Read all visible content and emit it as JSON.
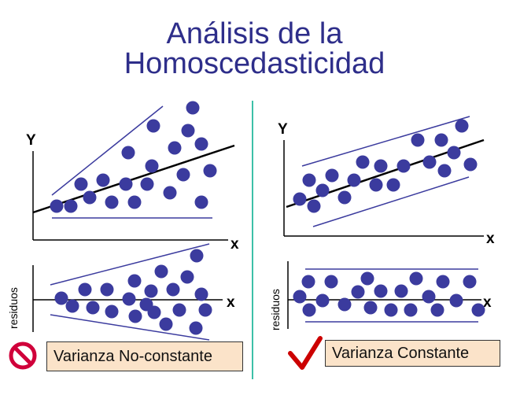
{
  "title": {
    "line1": "Análisis de la",
    "line2": "Homoscedasticidad"
  },
  "colors": {
    "title": "#2e2e8a",
    "dots": "#3b3b9e",
    "envelope": "#3b3b9e",
    "divider": "#3cc0a8",
    "box_fill": "#fbe3c9",
    "no_icon": "#d0003a",
    "check_icon": "#cc0000"
  },
  "left_panel": {
    "scatter": {
      "y_label": "Y",
      "x_label": "x"
    },
    "residuals": {
      "y_label": "residuos",
      "x_label": "x"
    },
    "caption": "Varianza No-constante",
    "icon": "prohibited-icon"
  },
  "right_panel": {
    "scatter": {
      "y_label": "Y",
      "x_label": "x"
    },
    "residuals": {
      "y_label": "residuos",
      "x_label": "x"
    },
    "caption": "Varianza Constante",
    "icon": "checkmark-icon"
  }
}
